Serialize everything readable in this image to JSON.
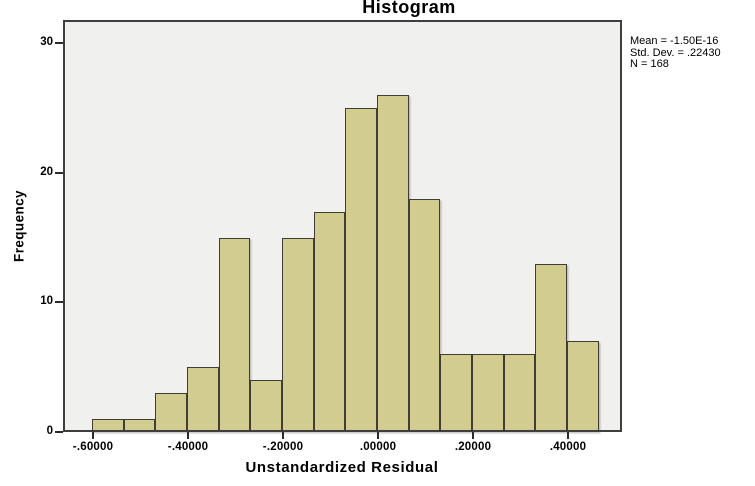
{
  "chart_data": {
    "type": "bar",
    "title": "Histogram",
    "xlabel": "Unstandardized Residual",
    "ylabel": "Frequency",
    "bin_start": -0.6,
    "bin_width": 0.066667,
    "values": [
      1,
      1,
      3,
      5,
      15,
      4,
      15,
      17,
      25,
      26,
      18,
      6,
      6,
      6,
      13,
      7
    ],
    "x_tick_values": [
      -0.6,
      -0.4,
      -0.2,
      0.0,
      0.2,
      0.4
    ],
    "x_tick_labels": [
      "-.60000",
      "-.40000",
      "-.20000",
      ".00000",
      ".20000",
      ".40000"
    ],
    "y_tick_values": [
      0,
      10,
      20,
      30
    ],
    "y_tick_labels": [
      "0",
      "10",
      "20",
      "30"
    ],
    "xlim": [
      -0.663,
      0.513
    ],
    "ylim": [
      0,
      31.8
    ],
    "grid": false,
    "legend_position": "none",
    "annotations": [
      "Mean = -1.50E-16",
      "Std. Dev. = .22430",
      "N = 168"
    ],
    "colors": {
      "bar_fill": "#d2cc8e",
      "bar_border": "#3e3e36",
      "plot_background": "#f0f0ee",
      "frame_border": "#3e3e3e",
      "text": "#000000"
    }
  }
}
